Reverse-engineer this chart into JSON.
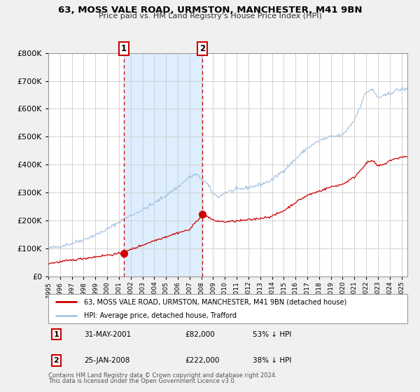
{
  "title": "63, MOSS VALE ROAD, URMSTON, MANCHESTER, M41 9BN",
  "subtitle": "Price paid vs. HM Land Registry's House Price Index (HPI)",
  "legend_line1": "63, MOSS VALE ROAD, URMSTON, MANCHESTER, M41 9BN (detached house)",
  "legend_line2": "HPI: Average price, detached house, Trafford",
  "annotation1_date": "31-MAY-2001",
  "annotation1_price": "£82,000",
  "annotation1_hpi": "53% ↓ HPI",
  "annotation2_date": "25-JAN-2008",
  "annotation2_price": "£222,000",
  "annotation2_hpi": "38% ↓ HPI",
  "footnote_line1": "Contains HM Land Registry data © Crown copyright and database right 2024.",
  "footnote_line2": "This data is licensed under the Open Government Licence v3.0.",
  "hpi_color": "#a8c4e0",
  "price_color": "#cc0000",
  "dot_color": "#cc0000",
  "shading_color": "#ddeeff",
  "dashed_line_color": "#cc0000",
  "grid_color": "#cccccc",
  "background_color": "#f0f0f0",
  "plot_bg_color": "#ffffff",
  "ylim": [
    0,
    800000
  ],
  "yticks": [
    0,
    100000,
    200000,
    300000,
    400000,
    500000,
    600000,
    700000,
    800000
  ],
  "sale1_year": 2001.42,
  "sale1_price": 82000,
  "sale2_year": 2008.07,
  "sale2_price": 222000,
  "xlim_start": 1995,
  "xlim_end": 2025.5
}
